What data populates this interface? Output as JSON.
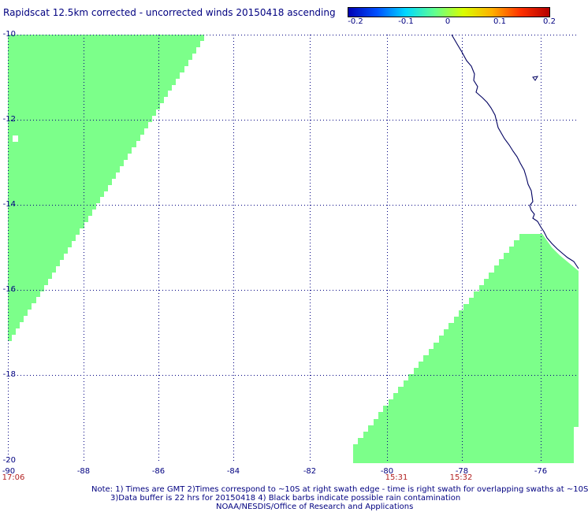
{
  "header": {
    "title": "Rapidscat 12.5km corrected - uncorrected winds 20150418 ascending"
  },
  "colorbar": {
    "labels": [
      "-0.2",
      "-0.1",
      "0",
      "0.1",
      "0.2"
    ],
    "colors": [
      "#0000b4",
      "#0050ff",
      "#00d8ff",
      "#60ff90",
      "#d8ff00",
      "#ffb000",
      "#ff3000",
      "#b40000"
    ]
  },
  "map": {
    "lat_labels": [
      "-10",
      "-12",
      "-14",
      "-16",
      "-18",
      "-20"
    ],
    "lon_labels": [
      "-90",
      "-88",
      "-86",
      "-84",
      "-82",
      "-80",
      "-78",
      "-76"
    ],
    "time_labels": [
      "17:06",
      "15:31",
      "15:32"
    ],
    "swath_color": "#7cff8a",
    "coast_color": "#000060",
    "grid_color": "#000080"
  },
  "footer": {
    "note1": "Note: 1) Times are GMT 2)Times correspond to ~10S at right swath edge - time is right swath for overlapping swaths at ~10S",
    "note2": "3)Data buffer is 22 hrs for 20150418 4) Black barbs indicate possible rain contamination",
    "note3": "NOAA/NESDIS/Office of Research and Applications"
  }
}
